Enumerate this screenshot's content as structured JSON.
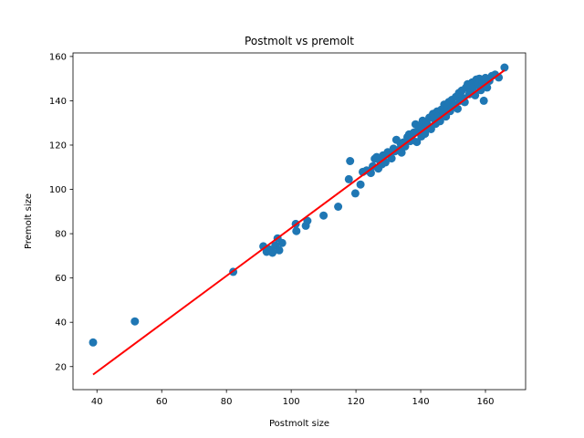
{
  "chart_data": {
    "type": "scatter",
    "title": "Postmolt vs premolt",
    "xlabel": "Postmolt size",
    "ylabel": "Premolt size",
    "xlim": [
      32.6,
      172.4
    ],
    "ylim": [
      9.6,
      161.6
    ],
    "xticks": [
      40,
      60,
      80,
      100,
      120,
      140,
      160
    ],
    "yticks": [
      20,
      40,
      60,
      80,
      100,
      120,
      140,
      160
    ],
    "grid": false,
    "legend": "none",
    "scatter_color": "#1f77b4",
    "line_color": "#ff0000",
    "points": {
      "x": [
        38.8,
        51.7,
        82.1,
        91.4,
        92.4,
        93.2,
        94.2,
        95.1,
        95.8,
        96.3,
        97.2,
        101.4,
        101.6,
        104.5,
        105.0,
        110.0,
        114.5,
        117.8,
        118.2,
        119.8,
        121.4,
        122.1,
        123.3,
        124.6,
        125.2,
        125.8,
        126.4,
        126.9,
        127.5,
        128.0,
        128.4,
        129.1,
        129.8,
        130.4,
        131.0,
        131.6,
        132.0,
        132.5,
        133.2,
        133.8,
        134.1,
        134.6,
        135.2,
        135.9,
        136.4,
        136.8,
        137.3,
        137.9,
        138.4,
        138.8,
        139.3,
        139.7,
        140.2,
        140.6,
        141.0,
        141.3,
        141.8,
        142.3,
        142.7,
        143.2,
        143.8,
        144.1,
        144.6,
        145.1,
        145.5,
        146.0,
        146.4,
        146.9,
        147.3,
        147.8,
        148.2,
        148.7,
        149.1,
        149.6,
        150.0,
        150.5,
        150.9,
        151.4,
        151.8,
        152.2,
        152.7,
        153.1,
        153.6,
        154.0,
        154.5,
        155.0,
        155.4,
        155.9,
        156.3,
        156.8,
        157.2,
        157.7,
        158.1,
        158.6,
        159.0,
        159.5,
        160.0,
        160.5,
        161.2,
        162.0,
        163.0,
        164.1,
        165.9
      ],
      "y": [
        30.9,
        40.4,
        62.8,
        74.3,
        71.8,
        72.9,
        71.4,
        74.6,
        77.9,
        72.5,
        75.8,
        84.4,
        81.2,
        83.6,
        85.8,
        88.2,
        92.2,
        104.6,
        112.8,
        98.2,
        102.2,
        107.9,
        108.6,
        107.4,
        110.4,
        113.8,
        114.6,
        109.4,
        112.6,
        111.3,
        115.4,
        112.2,
        116.8,
        115.5,
        114.0,
        118.4,
        117.2,
        122.4,
        117.8,
        120.6,
        116.6,
        121.2,
        119.4,
        123.6,
        124.8,
        121.8,
        122.6,
        125.7,
        129.4,
        121.4,
        126.8,
        128.2,
        123.9,
        131.0,
        127.5,
        125.1,
        130.3,
        128.8,
        132.4,
        127.2,
        134.1,
        131.9,
        129.6,
        135.2,
        133.3,
        130.8,
        136.0,
        134.6,
        138.3,
        132.9,
        136.7,
        139.5,
        135.3,
        140.4,
        137.6,
        138.1,
        141.8,
        136.4,
        143.5,
        140.0,
        144.6,
        141.2,
        139.4,
        145.9,
        147.5,
        143.0,
        144.1,
        148.3,
        146.2,
        142.5,
        149.6,
        147.1,
        150.0,
        144.8,
        147.9,
        140.0,
        150.3,
        146.0,
        149.0,
        151.2,
        151.8,
        150.5,
        155.0
      ]
    },
    "fit_line": {
      "x": [
        38.8,
        165.9
      ],
      "y": [
        16.4,
        153.8
      ]
    }
  }
}
